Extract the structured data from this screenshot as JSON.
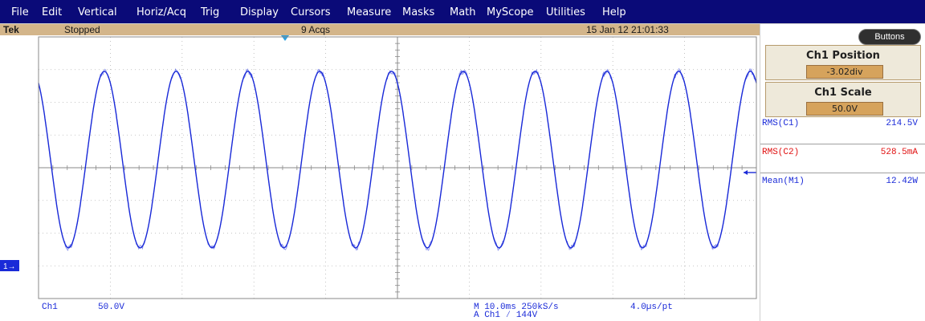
{
  "menu": {
    "items": [
      "File",
      "Edit",
      "Vertical",
      "Horiz/Acq",
      "Trig",
      "Display",
      "Cursors",
      "Measure",
      "Masks",
      "Math",
      "MyScope",
      "Utilities",
      "Help"
    ]
  },
  "status": {
    "brand": "Tek",
    "state": "Stopped",
    "acquisitions": "9 Acqs",
    "timestamp": "15 Jan 12 21:01:33"
  },
  "side_panel": {
    "buttons_label": "Buttons",
    "ch1_position": {
      "title": "Ch1 Position",
      "value": "-3.02div"
    },
    "ch1_scale": {
      "title": "Ch1 Scale",
      "value": "50.0V"
    },
    "measurements": [
      {
        "label": "RMS(C1)",
        "value": "214.5V",
        "color": "#1a2ad8"
      },
      {
        "label": "RMS(C2)",
        "value": "528.5mA",
        "color": "#e01010"
      },
      {
        "label": "Mean(M1)",
        "value": "12.42W",
        "color": "#1a2ad8"
      }
    ]
  },
  "bottom": {
    "channel": "Ch1",
    "volts_per_div": "50.0V",
    "horizontal": "M 10.0ms 250kS/s",
    "resolution": "4.0µs/pt",
    "trigger": "A  Ch1  ⁄  144V"
  },
  "display": {
    "channel_marker": "1→",
    "trace_color": "#1a2ad8",
    "grid_color": "#b4b4b4",
    "axis_color": "#8a8a8a",
    "waveform": {
      "cycles_visible": 10,
      "phase_at_left_edge_deg": 30,
      "max_level_div": 2.95,
      "min_level_div": -2.45,
      "horizontal_divs": 10,
      "vertical_divs": 8
    }
  },
  "colors": {
    "menubar_bg": "#0a0a78",
    "statusbar_bg": "#d3b58a",
    "trace": "#1a2ad8",
    "rms_c2": "#e01010"
  }
}
